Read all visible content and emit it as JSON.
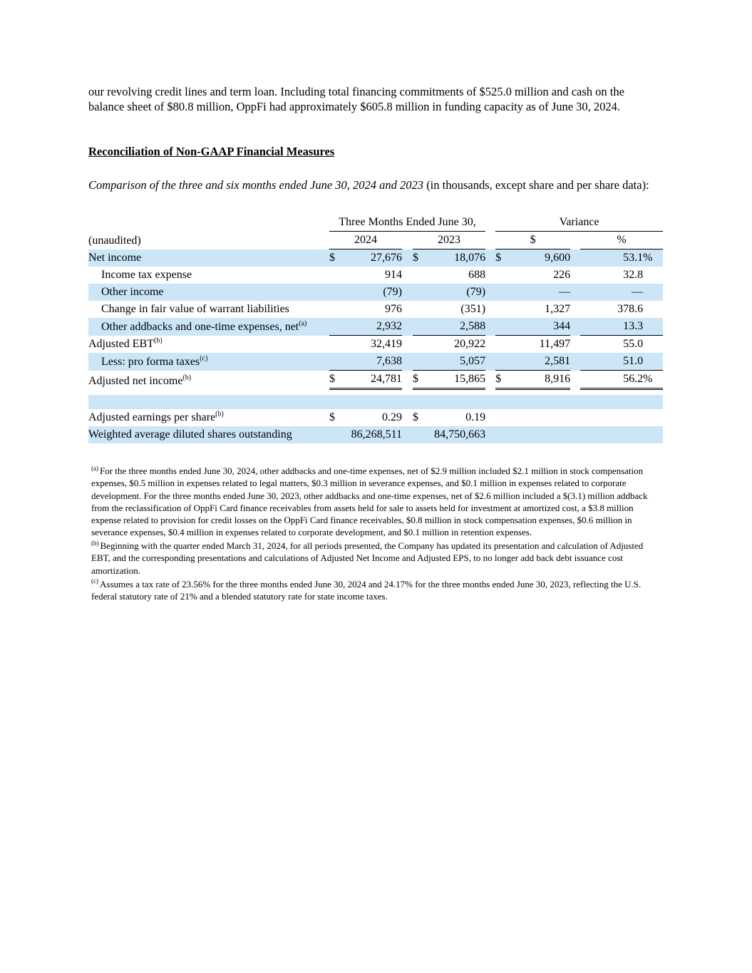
{
  "intro": "our revolving credit lines and term loan. Including total financing commitments of $525.0 million and cash on the balance sheet of $80.8 million, OppFi had approximately $605.8 million in funding capacity as of June 30, 2024.",
  "heading": "Reconciliation of Non-GAAP Financial Measures",
  "comparison_italic": "Comparison of the three and six months ended June 30, 2024 and 2023",
  "comparison_rest": " (in thousands, except share and per share data):",
  "colors": {
    "row_shade": "#cce6f8"
  },
  "table": {
    "group_headers": {
      "three_months": "Three Months Ended June 30,",
      "variance": "Variance"
    },
    "col_headers": {
      "unaudited": "(unaudited)",
      "y2024": "2024",
      "y2023": "2023",
      "dollar": "$",
      "percent": "%"
    },
    "rows": [
      {
        "label": "Net income",
        "indent": false,
        "shaded": true,
        "d1": "$",
        "v1": "27,676",
        "d2": "$",
        "v2": "18,076",
        "d3": "$",
        "v3": "9,600",
        "v4": "53.1",
        "p4": "%"
      },
      {
        "label": "Income tax expense",
        "indent": true,
        "shaded": false,
        "v1": "914",
        "v2": "688",
        "v3": "226",
        "v4": "32.8"
      },
      {
        "label": "Other income",
        "indent": true,
        "shaded": true,
        "v1": "(79)",
        "v2": "(79)",
        "v3": "—",
        "v4": "—"
      },
      {
        "label": "Change in fair value of warrant liabilities",
        "indent": true,
        "shaded": false,
        "v1": "976",
        "v2": "(351)",
        "v3": "1,327",
        "v4": "378.6"
      },
      {
        "label": "Other addbacks and one-time expenses, net",
        "sup": "(a)",
        "indent": true,
        "shaded": true,
        "u": "s",
        "v1": "2,932",
        "v2": "2,588",
        "v3": "344",
        "v4": "13.3"
      },
      {
        "label": "Adjusted EBT",
        "sup": "(b)",
        "indent": false,
        "shaded": false,
        "v1": "32,419",
        "v2": "20,922",
        "v3": "11,497",
        "v4": "55.0"
      },
      {
        "label": "Less: pro forma taxes",
        "sup": "(c)",
        "indent": true,
        "shaded": true,
        "u": "s",
        "v1": "7,638",
        "v2": "5,057",
        "v3": "2,581",
        "v4": "51.0"
      },
      {
        "label": "Adjusted net income",
        "sup": "(b)",
        "indent": false,
        "shaded": false,
        "u": "d",
        "d1": "$",
        "v1": "24,781",
        "d2": "$",
        "v2": "15,865",
        "d3": "$",
        "v3": "8,916",
        "v4": "56.2",
        "p4": "%"
      },
      {
        "spacer": true,
        "shaded": false,
        "h": 7
      },
      {
        "spacer": true,
        "shaded": true,
        "h": 20
      },
      {
        "label": "Adjusted earnings per share",
        "sup": "(b)",
        "indent": false,
        "shaded": false,
        "d1": "$",
        "v1": "0.29",
        "d2": "$",
        "v2": "0.19",
        "v3": "",
        "v4": ""
      },
      {
        "label": "Weighted average diluted shares outstanding",
        "indent": false,
        "shaded": true,
        "v1": "86,268,511",
        "v2": "84,750,663",
        "v3": "",
        "v4": ""
      }
    ]
  },
  "footnotes": [
    {
      "marker": "(a)",
      "text": "For the three months ended June 30, 2024, other addbacks and one-time expenses, net of $2.9 million included $2.1 million in stock compensation expenses, $0.5 million in expenses related to legal matters, $0.3 million in severance expenses, and $0.1 million in expenses related to corporate development. For the three months ended June 30, 2023, other addbacks and one-time expenses, net of $2.6 million included a $(3.1) million addback from the reclassification of OppFi Card finance receivables from assets held for sale to assets held for investment at amortized cost, a $3.8 million expense related to provision for credit losses on the OppFi Card finance receivables, $0.8 million in stock compensation expenses, $0.6 million in severance expenses, $0.4 million in expenses related to corporate development, and $0.1 million in retention expenses."
    },
    {
      "marker": "(b)",
      "text": "Beginning with the quarter ended March 31, 2024, for all periods presented, the Company has updated its presentation and calculation of Adjusted EBT, and the corresponding presentations and calculations of Adjusted Net Income and Adjusted EPS, to no longer add back debt issuance cost amortization."
    },
    {
      "marker": "(c)",
      "text": "Assumes a tax rate of 23.56% for the three months ended June 30, 2024 and 24.17% for the three months ended June 30, 2023, reflecting the U.S. federal statutory rate of 21% and a blended statutory rate for state income taxes."
    }
  ]
}
